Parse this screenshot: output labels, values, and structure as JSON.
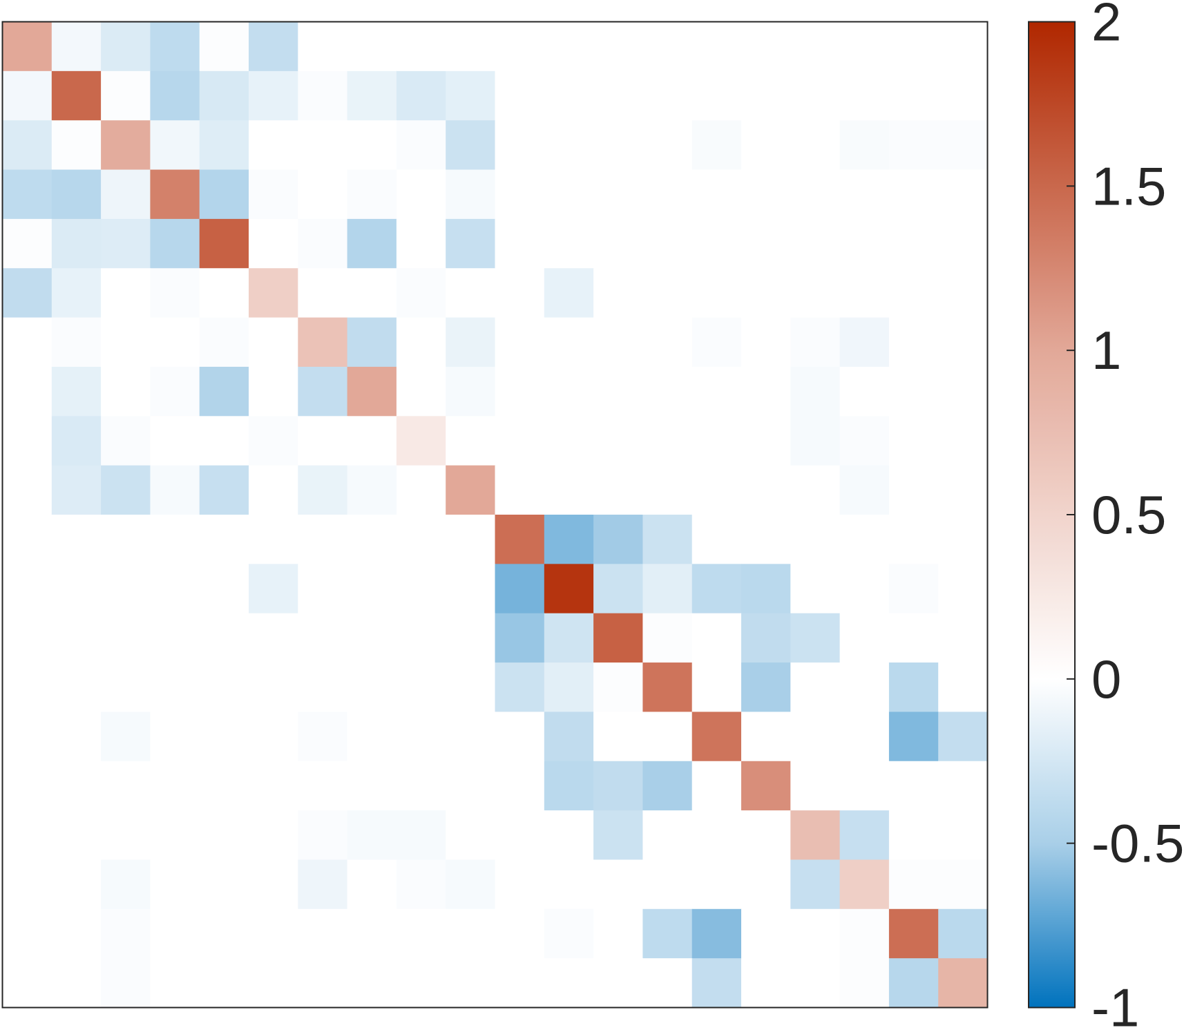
{
  "chart_data": {
    "type": "heatmap",
    "title": "",
    "xlabel": "",
    "ylabel": "",
    "rows": 20,
    "cols": 20,
    "matrix": [
      [
        1.0,
        -0.07,
        -0.21,
        -0.38,
        -0.02,
        -0.35,
        0,
        0,
        0,
        0,
        0,
        0,
        0,
        0,
        0,
        0,
        0,
        0,
        0,
        0
      ],
      [
        -0.07,
        1.5,
        -0.02,
        -0.42,
        -0.23,
        -0.14,
        -0.03,
        -0.13,
        -0.22,
        -0.16,
        0,
        0,
        0,
        0,
        0,
        0,
        0,
        0,
        0,
        0
      ],
      [
        -0.21,
        -0.02,
        0.95,
        -0.08,
        -0.19,
        0,
        0,
        0,
        -0.03,
        -0.3,
        0,
        0,
        0,
        0,
        -0.04,
        0,
        0,
        -0.04,
        -0.03,
        -0.03
      ],
      [
        -0.38,
        -0.42,
        -0.1,
        1.3,
        -0.44,
        -0.03,
        0,
        -0.03,
        0,
        -0.05,
        0,
        0,
        0,
        0,
        0,
        0,
        0,
        0,
        0,
        0
      ],
      [
        -0.02,
        -0.21,
        -0.2,
        -0.42,
        1.55,
        0,
        -0.03,
        -0.44,
        0,
        -0.33,
        0,
        0,
        0,
        0,
        0,
        0,
        0,
        0,
        0,
        0
      ],
      [
        -0.36,
        -0.14,
        0,
        -0.03,
        0,
        0.55,
        0,
        0,
        -0.03,
        0,
        0,
        -0.14,
        0,
        0,
        0,
        0,
        0,
        0,
        0,
        0
      ],
      [
        0,
        -0.03,
        0,
        0,
        -0.03,
        0,
        0.7,
        -0.36,
        0,
        -0.12,
        0,
        0,
        0,
        0,
        -0.03,
        0,
        -0.03,
        -0.09,
        0,
        0
      ],
      [
        0,
        -0.15,
        0,
        -0.03,
        -0.45,
        0,
        -0.35,
        1.0,
        0,
        -0.05,
        0,
        0,
        0,
        0,
        0,
        0,
        -0.05,
        0,
        0,
        0
      ],
      [
        0,
        -0.22,
        -0.03,
        0,
        0,
        -0.03,
        0,
        0,
        0.25,
        0,
        0,
        0,
        0,
        0,
        0,
        0,
        -0.05,
        -0.03,
        0,
        0
      ],
      [
        0,
        -0.2,
        -0.3,
        -0.05,
        -0.33,
        0,
        -0.13,
        -0.05,
        0,
        1.0,
        0,
        0,
        0,
        0,
        0,
        0,
        0,
        -0.05,
        0,
        0
      ],
      [
        0,
        0,
        0,
        0,
        0,
        0,
        0,
        0,
        0,
        0,
        1.45,
        -0.62,
        -0.52,
        -0.3,
        0,
        0,
        0,
        0,
        0,
        0
      ],
      [
        0,
        0,
        0,
        0,
        0,
        -0.14,
        0,
        0,
        0,
        0,
        -0.65,
        1.9,
        -0.3,
        -0.17,
        -0.38,
        -0.4,
        0,
        0,
        -0.03,
        0
      ],
      [
        0,
        0,
        0,
        0,
        0,
        0,
        0,
        0,
        0,
        0,
        -0.55,
        -0.28,
        1.55,
        -0.02,
        0,
        -0.36,
        -0.3,
        0,
        0,
        0
      ],
      [
        0,
        0,
        0,
        0,
        0,
        0,
        0,
        0,
        0,
        0,
        -0.3,
        -0.17,
        -0.02,
        1.4,
        0,
        -0.5,
        0,
        0,
        -0.4,
        0
      ],
      [
        0,
        0,
        -0.05,
        0,
        0,
        0,
        -0.03,
        0,
        0,
        0,
        0,
        -0.36,
        0,
        0,
        1.4,
        0,
        0,
        0,
        -0.62,
        -0.35
      ],
      [
        0,
        0,
        0,
        0,
        0,
        0,
        0,
        0,
        0,
        0,
        0,
        -0.4,
        -0.36,
        -0.5,
        0,
        1.2,
        0,
        0,
        0,
        0
      ],
      [
        0,
        0,
        0,
        0,
        0,
        0,
        -0.03,
        -0.05,
        -0.05,
        0,
        0,
        0,
        -0.3,
        0,
        0,
        0,
        0.75,
        -0.33,
        0,
        0
      ],
      [
        0,
        0,
        -0.05,
        0,
        0,
        0,
        -0.1,
        0,
        -0.03,
        -0.05,
        0,
        0,
        0,
        0,
        0,
        0,
        -0.33,
        0.55,
        -0.02,
        -0.02
      ],
      [
        0,
        0,
        -0.03,
        0,
        0,
        0,
        0,
        0,
        0,
        0,
        0,
        -0.03,
        0,
        -0.38,
        -0.6,
        0,
        0,
        -0.02,
        1.45,
        -0.4
      ],
      [
        0,
        0,
        -0.03,
        0,
        0,
        0,
        0,
        0,
        0,
        0,
        0,
        0,
        0,
        0,
        -0.35,
        0,
        0,
        -0.02,
        -0.42,
        0.85
      ]
    ],
    "colorbar": {
      "min": -1,
      "max": 2,
      "ticks": [
        -1,
        -0.5,
        0,
        0.5,
        1,
        1.5,
        2
      ],
      "tick_labels": [
        "-1",
        "-0.5",
        "0",
        "0.5",
        "1",
        "1.5",
        "2"
      ]
    },
    "colors": {
      "negative_end": "#0072bd",
      "negative_mid": "#a9cfe8",
      "zero": "#ffffff",
      "positive_mid": "#e2a898",
      "positive_end": "#b02700",
      "frame": "#262626"
    },
    "grid": false,
    "legend": "colorbar-right"
  }
}
